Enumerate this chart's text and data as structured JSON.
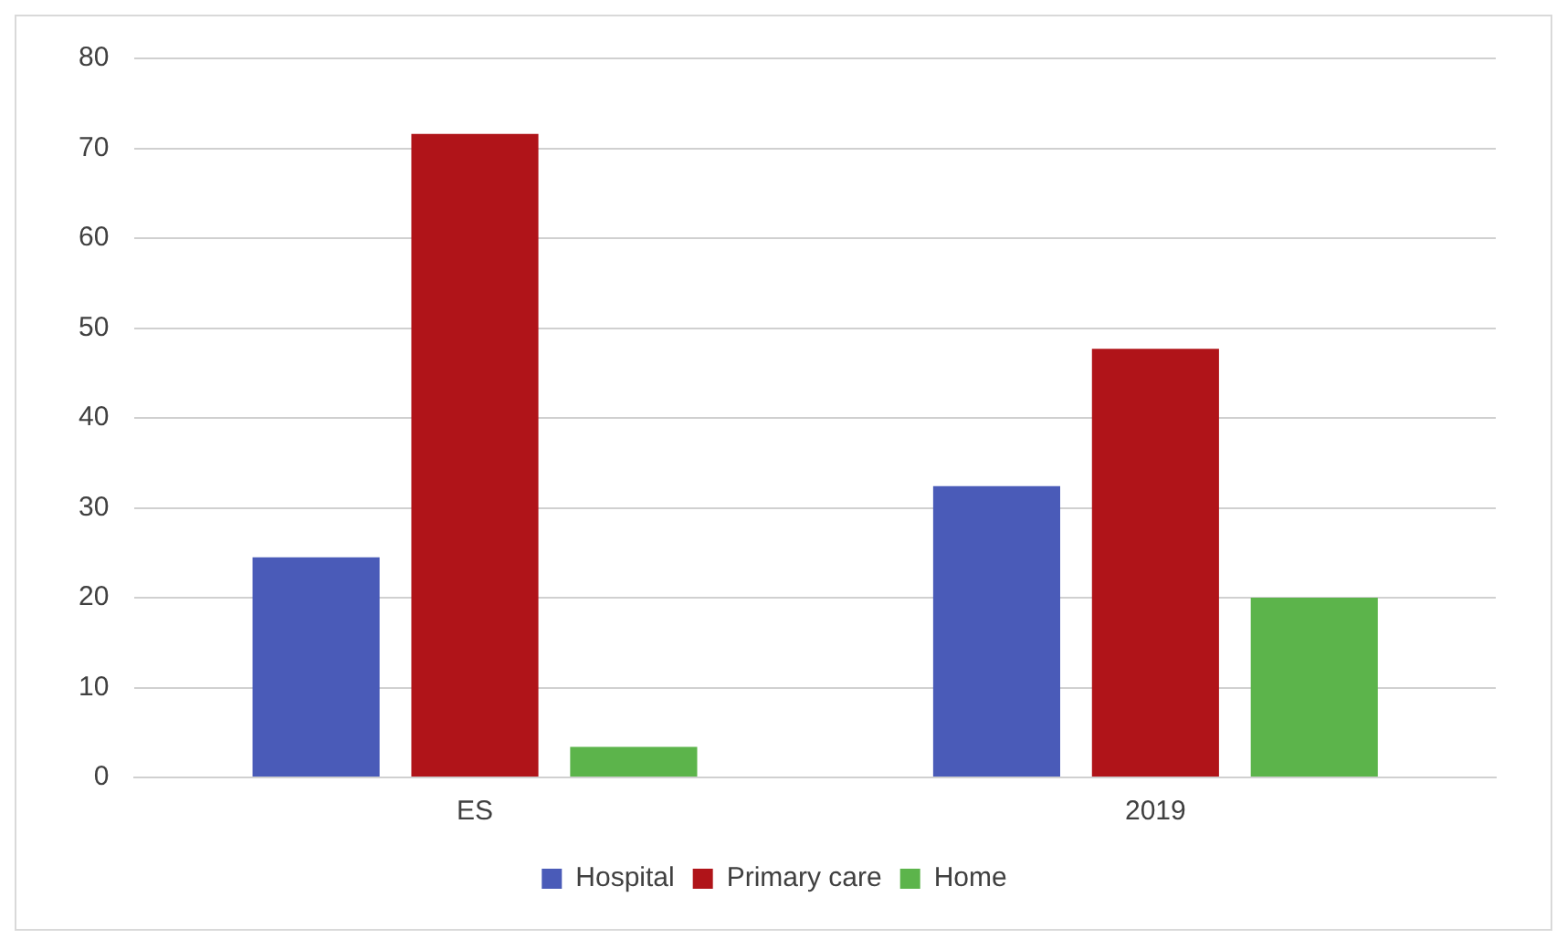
{
  "chart_data": {
    "type": "bar",
    "categories": [
      "ES",
      "2019"
    ],
    "series": [
      {
        "name": "Hospital",
        "color": "#4a5bb8",
        "values": [
          24.5,
          32.4
        ]
      },
      {
        "name": "Primary care",
        "color": "#b01419",
        "values": [
          71.6,
          47.7
        ]
      },
      {
        "name": "Home",
        "color": "#5cb44b",
        "values": [
          3.4,
          20.0
        ]
      }
    ],
    "ylim": [
      0,
      80
    ],
    "yticks": [
      0,
      10,
      20,
      30,
      40,
      50,
      60,
      70,
      80
    ],
    "grid": "y",
    "legend": "bottom"
  }
}
